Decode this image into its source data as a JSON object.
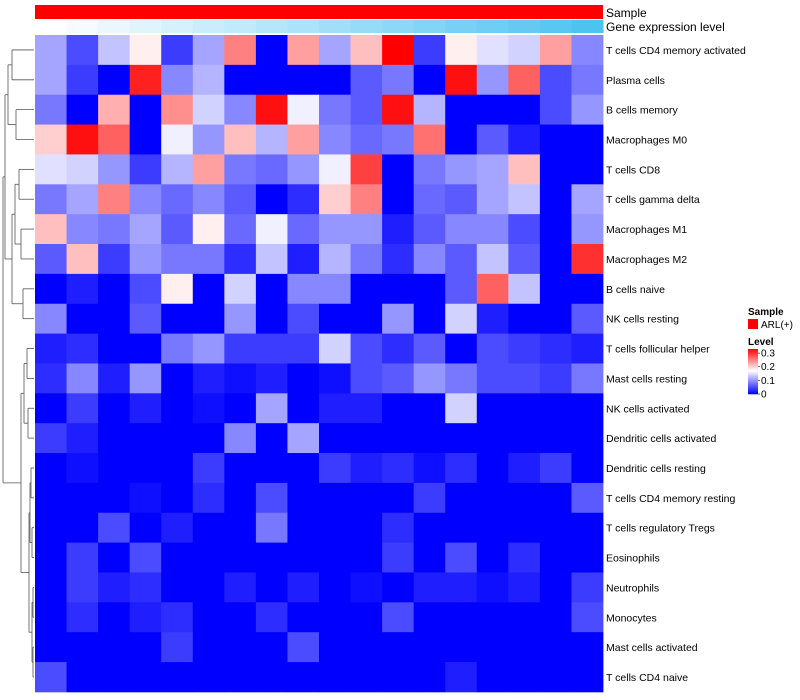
{
  "chart_data": {
    "type": "heatmap",
    "title": "",
    "annotation_tracks": [
      {
        "name": "Sample",
        "kind": "categorical",
        "values": [
          "ARL(+)"
        ],
        "colors": {
          "ARL(+)": "#ff0000"
        }
      },
      {
        "name": "Gene expression level",
        "kind": "continuous_gradient",
        "color_low": "#ffffff",
        "color_high": "#4fc3f0"
      }
    ],
    "rows": [
      "T cells CD4 memory activated",
      "Plasma cells",
      "B cells memory",
      "Macrophages M0",
      "T cells CD8",
      "T cells gamma delta",
      "Macrophages M1",
      "Macrophages M2",
      "B cells naive",
      "NK cells resting",
      "T cells follicular helper",
      "Mast cells resting",
      "NK cells activated",
      "Dendritic cells activated",
      "Dendritic cells resting",
      "T cells CD4 memory resting",
      "T cells regulatory  Tregs",
      "Eosinophils",
      "Neutrophils",
      "Monocytes",
      "Mast cells activated",
      "T cells CD4 naive"
    ],
    "n_columns": 18,
    "values": [
      [
        0.11,
        0.05,
        0.13,
        0.18,
        0.04,
        0.11,
        0.25,
        0.0,
        0.23,
        0.11,
        0.21,
        0.33,
        0.04,
        0.18,
        0.15,
        0.14,
        0.23,
        0.09
      ],
      [
        0.11,
        0.04,
        0.0,
        0.31,
        0.09,
        0.12,
        0.0,
        0.0,
        0.0,
        0.0,
        0.06,
        0.08,
        0.0,
        0.32,
        0.1,
        0.27,
        0.05,
        0.08
      ],
      [
        0.08,
        0.0,
        0.22,
        0.0,
        0.24,
        0.14,
        0.09,
        0.32,
        0.16,
        0.08,
        0.06,
        0.32,
        0.12,
        0.0,
        0.0,
        0.0,
        0.05,
        0.1
      ],
      [
        0.2,
        0.32,
        0.27,
        0.0,
        0.16,
        0.1,
        0.21,
        0.12,
        0.23,
        0.09,
        0.07,
        0.08,
        0.26,
        0.0,
        0.06,
        0.02,
        0.0,
        0.0
      ],
      [
        0.15,
        0.14,
        0.1,
        0.04,
        0.12,
        0.23,
        0.08,
        0.07,
        0.1,
        0.16,
        0.29,
        0.0,
        0.08,
        0.1,
        0.11,
        0.21,
        0.0,
        0.0
      ],
      [
        0.08,
        0.11,
        0.25,
        0.09,
        0.07,
        0.09,
        0.06,
        0.0,
        0.03,
        0.2,
        0.25,
        0.0,
        0.07,
        0.06,
        0.11,
        0.13,
        0.0,
        0.11
      ],
      [
        0.21,
        0.09,
        0.08,
        0.11,
        0.06,
        0.18,
        0.07,
        0.16,
        0.07,
        0.1,
        0.1,
        0.02,
        0.06,
        0.09,
        0.09,
        0.05,
        0.0,
        0.1
      ],
      [
        0.06,
        0.21,
        0.04,
        0.1,
        0.08,
        0.08,
        0.03,
        0.13,
        0.02,
        0.12,
        0.08,
        0.03,
        0.09,
        0.06,
        0.13,
        0.06,
        0.0,
        0.3
      ],
      [
        0.0,
        0.02,
        0.0,
        0.05,
        0.18,
        0.0,
        0.14,
        0.0,
        0.09,
        0.09,
        0.0,
        0.0,
        0.0,
        0.06,
        0.27,
        0.13,
        0.0,
        0.0
      ],
      [
        0.09,
        0.0,
        0.0,
        0.06,
        0.0,
        0.0,
        0.1,
        0.0,
        0.05,
        0.0,
        0.0,
        0.1,
        0.0,
        0.14,
        0.02,
        0.0,
        0.0,
        0.06
      ],
      [
        0.02,
        0.03,
        0.0,
        0.0,
        0.08,
        0.1,
        0.04,
        0.04,
        0.04,
        0.14,
        0.05,
        0.03,
        0.06,
        0.0,
        0.05,
        0.04,
        0.03,
        0.02
      ],
      [
        0.03,
        0.09,
        0.02,
        0.1,
        0.0,
        0.02,
        0.01,
        0.02,
        0.0,
        0.01,
        0.05,
        0.06,
        0.1,
        0.08,
        0.05,
        0.05,
        0.04,
        0.08
      ],
      [
        0.0,
        0.04,
        0.0,
        0.02,
        0.0,
        0.01,
        0.0,
        0.11,
        0.0,
        0.02,
        0.02,
        0.0,
        0.0,
        0.14,
        0.0,
        0.0,
        0.0,
        0.0
      ],
      [
        0.04,
        0.02,
        0.0,
        0.0,
        0.0,
        0.0,
        0.09,
        0.0,
        0.11,
        0.0,
        0.0,
        0.0,
        0.0,
        0.0,
        0.0,
        0.0,
        0.0,
        0.0
      ],
      [
        0.0,
        0.01,
        0.0,
        0.0,
        0.0,
        0.04,
        0.0,
        0.0,
        0.0,
        0.04,
        0.02,
        0.03,
        0.01,
        0.03,
        0.0,
        0.02,
        0.04,
        0.0
      ],
      [
        0.0,
        0.0,
        0.0,
        0.01,
        0.0,
        0.03,
        0.0,
        0.05,
        0.0,
        0.0,
        0.0,
        0.0,
        0.04,
        0.0,
        0.0,
        0.0,
        0.0,
        0.06
      ],
      [
        0.0,
        0.0,
        0.05,
        0.0,
        0.02,
        0.0,
        0.0,
        0.08,
        0.0,
        0.0,
        0.0,
        0.03,
        0.0,
        0.0,
        0.0,
        0.0,
        0.0,
        0.0
      ],
      [
        0.0,
        0.04,
        0.0,
        0.05,
        0.0,
        0.0,
        0.0,
        0.0,
        0.0,
        0.0,
        0.0,
        0.04,
        0.0,
        0.05,
        0.0,
        0.03,
        0.0,
        0.0
      ],
      [
        0.0,
        0.04,
        0.02,
        0.03,
        0.0,
        0.0,
        0.02,
        0.0,
        0.02,
        0.0,
        0.01,
        0.0,
        0.02,
        0.02,
        0.01,
        0.02,
        0.0,
        0.04
      ],
      [
        0.0,
        0.03,
        0.0,
        0.02,
        0.03,
        0.0,
        0.0,
        0.03,
        0.0,
        0.0,
        0.0,
        0.05,
        0.0,
        0.0,
        0.0,
        0.0,
        0.0,
        0.05
      ],
      [
        0.0,
        0.0,
        0.0,
        0.0,
        0.04,
        0.0,
        0.0,
        0.0,
        0.05,
        0.0,
        0.0,
        0.0,
        0.0,
        0.0,
        0.0,
        0.0,
        0.0,
        0.0
      ],
      [
        0.05,
        0.0,
        0.0,
        0.0,
        0.0,
        0.0,
        0.0,
        0.0,
        0.0,
        0.0,
        0.0,
        0.0,
        0.0,
        0.02,
        0.0,
        0.0,
        0.0,
        0.0
      ]
    ],
    "color_scale": {
      "min": 0,
      "max": 0.33,
      "low": "#0000ff",
      "mid": "#ffffff",
      "high": "#ff0000",
      "midpoint": 0.17
    },
    "legends": [
      {
        "title": "Sample",
        "entries": [
          {
            "label": "ARL(+)",
            "color": "#ff0000"
          }
        ]
      },
      {
        "title": "Level",
        "ticks": [
          "0.3",
          "0.2",
          "0.1",
          "0"
        ],
        "tick_values": [
          0.3,
          0.2,
          0.1,
          0
        ]
      }
    ],
    "row_dendrogram": true,
    "column_dendrogram": false
  }
}
